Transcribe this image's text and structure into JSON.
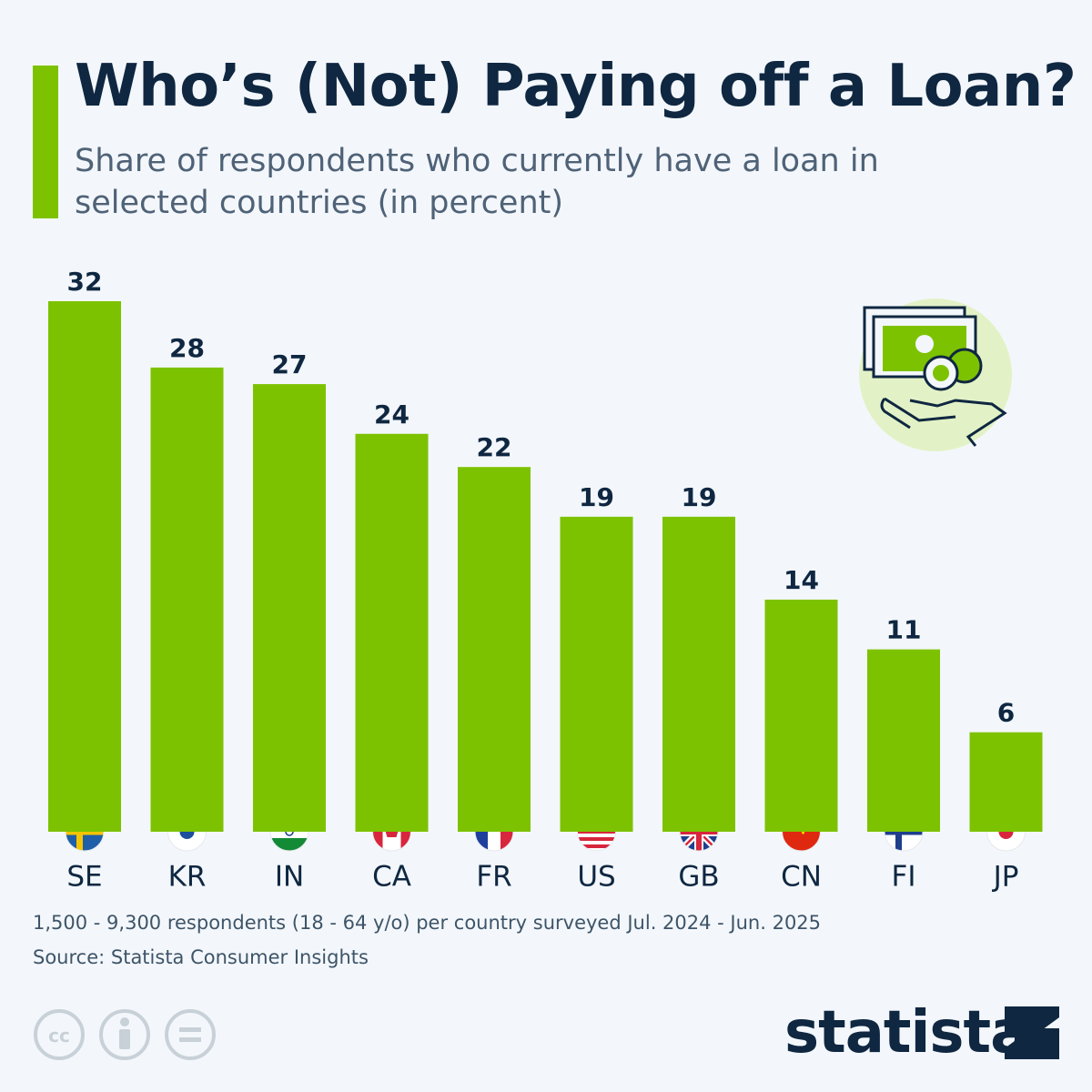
{
  "chart_data": {
    "type": "bar",
    "title": "Who’s (Not) Paying off a Loan?",
    "subtitle": "Share of respondents who currently have a loan in selected countries (in percent)",
    "categories": [
      "SE",
      "KR",
      "IN",
      "CA",
      "FR",
      "US",
      "GB",
      "CN",
      "FI",
      "JP"
    ],
    "values": [
      32,
      28,
      27,
      24,
      22,
      19,
      19,
      14,
      11,
      6
    ],
    "color": "#7dc200",
    "note": "1,500 - 9,300 respondents (18 - 64 y/o) per country surveyed Jul. 2024 - Jun. 2025",
    "source": "Source: Statista Consumer Insights",
    "brand": "statista"
  }
}
